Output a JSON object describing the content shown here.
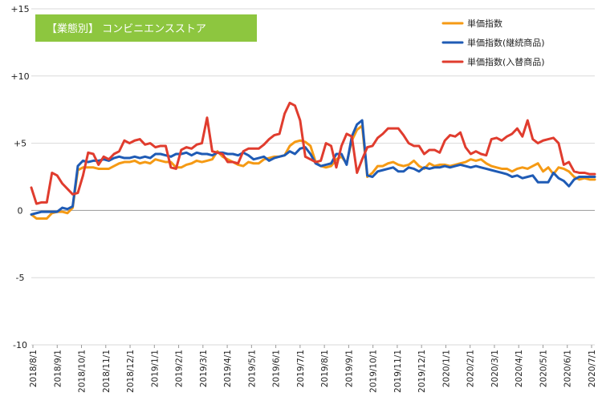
{
  "chart_data": {
    "type": "line",
    "title": "【業態別】 コンビニエンスストア",
    "xlabel": "",
    "ylabel": "",
    "ylim": [
      -10,
      15
    ],
    "yticks": [
      15,
      10,
      5,
      0,
      -5,
      -10
    ],
    "ytick_labels": [
      "+15",
      "+10",
      "+5",
      "0",
      "-5",
      "-10"
    ],
    "x_tick_labels": [
      "2018/8/1",
      "2018/9/1",
      "2018/10/1",
      "2018/11/1",
      "2018/12/1",
      "2019/1/1",
      "2019/2/1",
      "2019/3/1",
      "2019/4/1",
      "2019/5/1",
      "2019/6/1",
      "2019/7/1",
      "2019/8/1",
      "2019/9/1",
      "2019/10/1",
      "2019/11/1",
      "2019/12/1",
      "2020/1/1",
      "2020/2/1",
      "2020/3/1",
      "2020/4/1",
      "2020/5/1",
      "2020/6/1",
      "2020/7/1"
    ],
    "grid": "horizontal",
    "legend_position": "top-right",
    "colors": {
      "title_bg": "#8dc63f",
      "grid": "#d9d9d9",
      "zero_line": "#9a9a9a"
    },
    "series": [
      {
        "name": "単価指数",
        "color": "#f59a14",
        "values": [
          -0.3,
          -0.6,
          -0.6,
          -0.6,
          -0.2,
          -0.1,
          -0.1,
          -0.2,
          0.2,
          3.0,
          3.2,
          3.2,
          3.2,
          3.1,
          3.1,
          3.1,
          3.3,
          3.5,
          3.6,
          3.6,
          3.7,
          3.5,
          3.6,
          3.5,
          3.8,
          3.7,
          3.6,
          3.6,
          3.2,
          3.2,
          3.4,
          3.5,
          3.7,
          3.6,
          3.7,
          3.8,
          4.4,
          4.0,
          3.8,
          3.6,
          3.4,
          3.3,
          3.6,
          3.5,
          3.5,
          3.8,
          3.9,
          4.0,
          4.0,
          4.1,
          4.8,
          5.1,
          5.2,
          5.1,
          4.8,
          3.6,
          3.3,
          3.2,
          3.3,
          3.8,
          4.0,
          3.5,
          5.2,
          6.0,
          6.3,
          2.5,
          2.8,
          3.3,
          3.3,
          3.5,
          3.6,
          3.4,
          3.3,
          3.4,
          3.7,
          3.3,
          3.1,
          3.5,
          3.3,
          3.4,
          3.4,
          3.3,
          3.4,
          3.5,
          3.6,
          3.8,
          3.7,
          3.8,
          3.5,
          3.3,
          3.2,
          3.1,
          3.1,
          2.9,
          3.1,
          3.2,
          3.1,
          3.3,
          3.5,
          2.9,
          3.2,
          2.7,
          3.2,
          3.1,
          2.9,
          2.5,
          2.3,
          2.4,
          2.3,
          2.3
        ]
      },
      {
        "name": "単価指数(継続商品)",
        "color": "#1f5bb5",
        "values": [
          -0.3,
          -0.2,
          -0.1,
          -0.1,
          -0.1,
          -0.1,
          0.2,
          0.1,
          0.3,
          3.3,
          3.7,
          3.6,
          3.7,
          3.7,
          3.8,
          3.7,
          3.9,
          4.0,
          3.9,
          3.9,
          4.0,
          3.9,
          4.0,
          3.9,
          4.2,
          4.2,
          4.1,
          4.0,
          4.2,
          4.2,
          4.3,
          4.1,
          4.3,
          4.2,
          4.2,
          4.1,
          4.3,
          4.3,
          4.2,
          4.2,
          4.1,
          4.3,
          4.1,
          3.8,
          3.9,
          4.0,
          3.7,
          3.9,
          4.0,
          4.1,
          4.4,
          4.2,
          4.6,
          4.7,
          4.2,
          3.5,
          3.3,
          3.4,
          3.5,
          4.2,
          4.2,
          3.4,
          5.5,
          6.4,
          6.7,
          2.6,
          2.5,
          2.9,
          3.0,
          3.1,
          3.2,
          2.9,
          2.9,
          3.2,
          3.1,
          2.9,
          3.2,
          3.1,
          3.2,
          3.2,
          3.3,
          3.2,
          3.3,
          3.4,
          3.3,
          3.2,
          3.3,
          3.2,
          3.1,
          3.0,
          2.9,
          2.8,
          2.7,
          2.5,
          2.6,
          2.4,
          2.5,
          2.6,
          2.1,
          2.1,
          2.1,
          2.8,
          2.4,
          2.2,
          1.8,
          2.3,
          2.5,
          2.5,
          2.5,
          2.5
        ]
      },
      {
        "name": "単価指数(入替商品)",
        "color": "#e03c2e",
        "values": [
          1.7,
          0.5,
          0.6,
          0.6,
          2.8,
          2.6,
          2.0,
          1.6,
          1.2,
          1.3,
          2.6,
          4.3,
          4.2,
          3.4,
          4.0,
          3.8,
          4.2,
          4.4,
          5.2,
          5.0,
          5.2,
          5.3,
          4.9,
          5.0,
          4.7,
          4.8,
          4.8,
          3.2,
          3.1,
          4.5,
          4.7,
          4.6,
          4.9,
          5.0,
          6.9,
          4.4,
          4.3,
          4.2,
          3.6,
          3.6,
          3.5,
          4.4,
          4.6,
          4.6,
          4.6,
          4.9,
          5.3,
          5.6,
          5.7,
          7.2,
          8.0,
          7.8,
          6.7,
          4.0,
          3.8,
          3.6,
          3.7,
          5.0,
          4.8,
          3.2,
          4.8,
          5.7,
          5.5,
          2.8,
          3.8,
          4.7,
          4.8,
          5.4,
          5.7,
          6.1,
          6.1,
          6.1,
          5.6,
          5.0,
          4.8,
          4.8,
          4.2,
          4.5,
          4.5,
          4.3,
          5.2,
          5.6,
          5.5,
          5.8,
          4.7,
          4.2,
          4.4,
          4.2,
          4.1,
          5.3,
          5.4,
          5.2,
          5.5,
          5.7,
          6.1,
          5.5,
          6.7,
          5.3,
          5.0,
          5.2,
          5.3,
          5.4,
          5.0,
          3.4,
          3.6,
          2.9,
          2.8,
          2.8,
          2.7,
          2.7
        ]
      }
    ]
  }
}
